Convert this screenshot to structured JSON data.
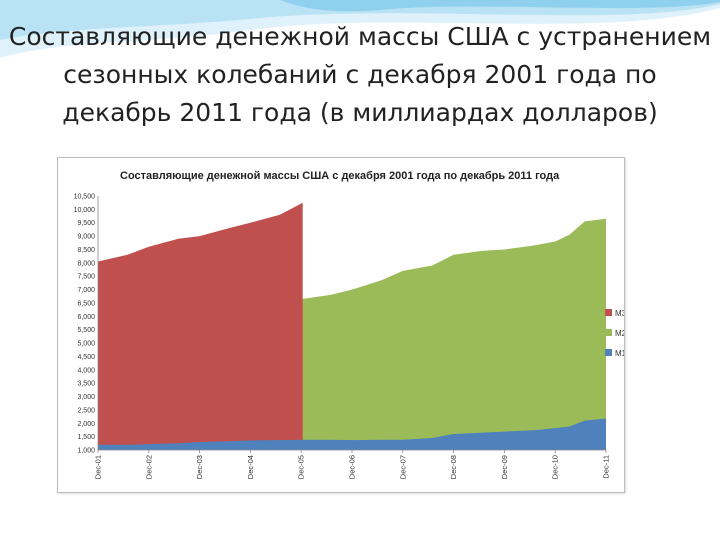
{
  "slide": {
    "title_lines": [
      "Составляющие денежной массы США с устранением",
      "сезонных колебаний с декабря 2001 года по",
      "декабрь 2011 года (в миллиардах долларов)"
    ]
  },
  "colors": {
    "M3": "#c0504d",
    "M2": "#9bbb59",
    "M1": "#4f81bd"
  },
  "chart_data": {
    "type": "area",
    "title": "Составляющие денежной массы США с декабря 2001 года по декабрь 2011 года",
    "xlabel": "",
    "ylabel": "",
    "ylim": [
      1000,
      10500
    ],
    "yticks": [
      "1,000",
      "1,500",
      "2,000",
      "2,500",
      "3,000",
      "3,500",
      "4,000",
      "4,500",
      "5,000",
      "5,500",
      "6,000",
      "6,500",
      "7,000",
      "7,500",
      "8,000",
      "8,500",
      "9,000",
      "9,500",
      "10,000",
      "10,500"
    ],
    "xticks": [
      "Dec-01",
      "Dec-02",
      "Dec-03",
      "Dec-04",
      "Dec-05",
      "Dec-06",
      "Dec-07",
      "Dec-08",
      "Dec-09",
      "Dec-10",
      "Dec-11"
    ],
    "grid": false,
    "legend_position": "right",
    "series": [
      {
        "name": "M3",
        "x": [
          2001.92,
          2002.5,
          2002.92,
          2003.5,
          2003.92,
          2004.5,
          2004.92,
          2005.5,
          2005.95
        ],
        "values": [
          8050,
          8300,
          8600,
          8900,
          9000,
          9300,
          9500,
          9800,
          10250
        ]
      },
      {
        "name": "M2",
        "x": [
          2001.92,
          2002.5,
          2002.92,
          2003.5,
          2003.92,
          2004.5,
          2004.92,
          2005.5,
          2005.95,
          2006.5,
          2006.92,
          2007.5,
          2007.92,
          2008.5,
          2008.92,
          2009.5,
          2009.92,
          2010.5,
          2010.92,
          2011.2,
          2011.5,
          2011.92
        ],
        "values": [
          5450,
          5600,
          5800,
          6000,
          6100,
          6250,
          6350,
          6500,
          6650,
          6800,
          7000,
          7350,
          7700,
          7900,
          8300,
          8450,
          8500,
          8650,
          8800,
          9050,
          9550,
          9650
        ]
      },
      {
        "name": "M1",
        "x": [
          2001.92,
          2002.5,
          2002.92,
          2003.5,
          2003.92,
          2004.5,
          2004.92,
          2005.5,
          2005.95,
          2006.5,
          2006.92,
          2007.5,
          2007.92,
          2008.5,
          2008.92,
          2009.5,
          2009.92,
          2010.5,
          2010.92,
          2011.2,
          2011.5,
          2011.92
        ],
        "values": [
          1200,
          1200,
          1220,
          1250,
          1300,
          1330,
          1360,
          1370,
          1380,
          1380,
          1370,
          1380,
          1380,
          1450,
          1600,
          1650,
          1690,
          1740,
          1820,
          1880,
          2100,
          2180
        ]
      }
    ]
  }
}
